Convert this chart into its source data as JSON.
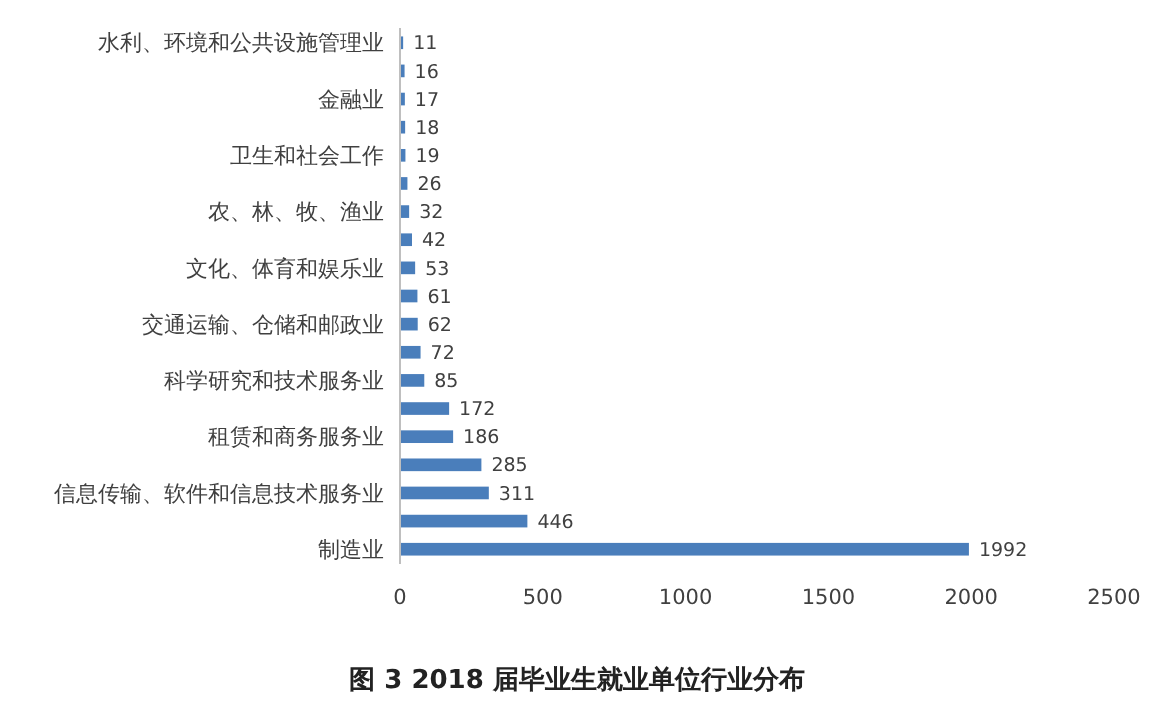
{
  "chart_data": {
    "type": "bar",
    "orientation": "horizontal",
    "title": "图 3 2018 届毕业生就业单位行业分布",
    "categories": [
      "水利、环境和公共设施管理业",
      null,
      "金融业",
      null,
      "卫生和社会工作",
      null,
      "农、林、牧、渔业",
      null,
      "文化、体育和娱乐业",
      null,
      "交通运输、仓储和邮政业",
      null,
      "科学研究和技术服务业",
      null,
      "租赁和商务服务业",
      null,
      "信息传输、软件和信息技术服务业",
      null,
      "制造业"
    ],
    "values": [
      11,
      16,
      17,
      18,
      19,
      26,
      32,
      42,
      53,
      61,
      62,
      72,
      85,
      172,
      186,
      285,
      311,
      446,
      1992
    ],
    "color": "#4a7ebb",
    "xlim": [
      0,
      2500
    ],
    "xticks": [
      0,
      500,
      1000,
      1500,
      2000,
      2500
    ],
    "data_labels": true,
    "grid": false
  }
}
